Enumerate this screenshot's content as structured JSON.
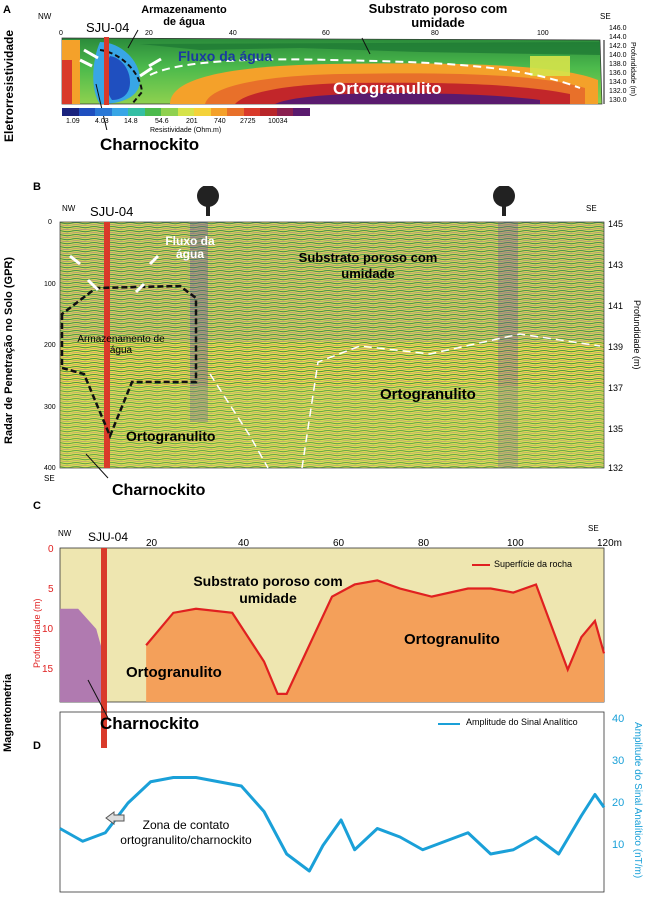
{
  "panel_a": {
    "letter": "A",
    "side_label": "Eletrorresistividade",
    "nw": "NW",
    "se": "SE",
    "well": "SJU-04",
    "x_ticks": [
      "0",
      "20",
      "40",
      "60",
      "80",
      "100"
    ],
    "depth_ticks": [
      "146.0",
      "144.0",
      "142.0",
      "140.0",
      "138.0",
      "136.0",
      "134.0",
      "132.0",
      "130.0"
    ],
    "depth_axis_label": "Profundidade (m)",
    "labels": {
      "storage": "Armazenamento de água",
      "substrate": "Substrato poroso com umidade",
      "flow": "Fluxo da água",
      "ortho": "Ortogranulito",
      "charno": "Charnockito"
    },
    "colorbar": {
      "ticks": [
        "1.09",
        "4.03",
        "14.8",
        "54.6",
        "201",
        "740",
        "2725",
        "10034"
      ],
      "title": "Resistividade (Ohm.m)",
      "colors": [
        "#1a237e",
        "#1f4fbf",
        "#2a78d6",
        "#38a6e6",
        "#35bfa4",
        "#4cba4c",
        "#8fd14f",
        "#d6e34a",
        "#f4d23a",
        "#f4a12a",
        "#e8702a",
        "#d93a2a",
        "#b8262a",
        "#8a1f4f",
        "#5a1a6e"
      ]
    }
  },
  "panel_b": {
    "letter": "B",
    "side_label": "Radar de Penetração no Solo (GPR)",
    "nw": "NW",
    "se": "SE",
    "se_bottom": "SE",
    "well": "SJU-04",
    "left_ticks": [
      "0",
      "100",
      "200",
      "300",
      "400"
    ],
    "right_ticks": [
      "145",
      "143",
      "141",
      "139",
      "137",
      "135",
      "132"
    ],
    "depth_axis_label": "Profundidade (m)",
    "labels": {
      "flow": "Fluxo da água",
      "substrate": "Substrato poroso com umidade",
      "storage": "Armazenamento de água",
      "ortho_left": "Ortogranulito",
      "ortho_right": "Ortogranulito",
      "charno": "Charnockito"
    }
  },
  "panel_c": {
    "letter": "C",
    "side_label": "Magnetometria",
    "nw": "NW",
    "se": "SE",
    "well": "SJU-04",
    "x_ticks": [
      "20",
      "40",
      "60",
      "80",
      "100",
      "120m"
    ],
    "y_ticks": [
      "0",
      "5",
      "10",
      "15"
    ],
    "y_axis_label": "Profundidade (m)",
    "legend": "Superfície da rocha",
    "labels": {
      "substrate": "Substrato poroso com umidade",
      "ortho_left": "Ortogranulito",
      "ortho_right": "Ortogranulito",
      "charno": "Charnockito"
    },
    "colors": {
      "rock_line": "#e02020",
      "ortho_fill": "#f4a05a",
      "substrate_fill": "#eee6b0",
      "charno_fill": "#b07ab0"
    }
  },
  "panel_d": {
    "letter": "D",
    "legend": "Amplitude do Sinal Analítico",
    "y_ticks": [
      "40",
      "30",
      "20",
      "10"
    ],
    "y_axis_label": "Amplitude do Sinal Analítico (nT/m)",
    "annotation": "Zona de contato ortogranulito/charnockito",
    "colors": {
      "line": "#1aa0d8"
    }
  },
  "chart_data": [
    {
      "type": "line",
      "title": "",
      "series": [
        {
          "name": "Superfície da rocha",
          "x": [
            19,
            25,
            30,
            38,
            45,
            48,
            50,
            55,
            60,
            65,
            70,
            75,
            82,
            90,
            95,
            100,
            105,
            108,
            112,
            115,
            118,
            120
          ],
          "y": [
            12,
            8,
            7.5,
            8,
            14,
            18,
            18,
            12,
            6,
            4.5,
            4,
            5,
            6,
            5,
            5,
            5.5,
            4.5,
            9,
            15,
            11,
            9,
            13
          ]
        }
      ],
      "xlabel": "",
      "ylabel": "Profundidade (m)",
      "xlim": [
        0,
        120
      ],
      "ylim": [
        0,
        19
      ]
    },
    {
      "type": "line",
      "title": "",
      "series": [
        {
          "name": "Amplitude do Sinal Analítico",
          "x": [
            0,
            5,
            10,
            15,
            20,
            25,
            30,
            35,
            40,
            45,
            50,
            55,
            58,
            62,
            65,
            70,
            75,
            80,
            85,
            90,
            95,
            100,
            105,
            110,
            115,
            118,
            120
          ],
          "y": [
            14,
            11,
            13,
            20,
            25,
            26,
            26,
            25,
            24,
            18,
            8,
            4,
            10,
            16,
            9,
            14,
            12,
            9,
            11,
            13,
            8,
            9,
            12,
            8,
            17,
            22,
            19
          ]
        }
      ],
      "xlabel": "",
      "ylabel": "Amplitude do Sinal Analítico (nT/m)",
      "xlim": [
        0,
        120
      ],
      "ylim": [
        0,
        40
      ]
    }
  ]
}
